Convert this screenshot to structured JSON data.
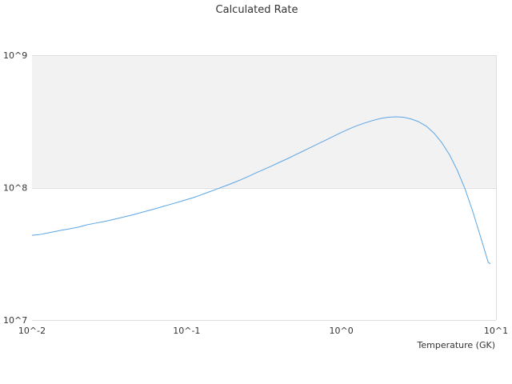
{
  "chart_data": {
    "type": "line",
    "title": "Calculated Rate",
    "xlabel": "Temperature (GK)",
    "ylabel": "",
    "x_scale": "log",
    "y_scale": "log",
    "xlim": [
      0.01,
      10
    ],
    "ylim": [
      10000000,
      1000000000
    ],
    "x_tick_labels": [
      "10^-2",
      "10^-1",
      "10^0",
      "10^1"
    ],
    "y_tick_labels": [
      "10^7",
      "10^8",
      "10^9"
    ],
    "grid": true,
    "legend": "none",
    "colors": {
      "line": "#5aa5e6",
      "band": "#f2f2f2",
      "grid": "#dddddd",
      "text": "#333333"
    },
    "series": [
      {
        "x": [
          0.01,
          0.0112,
          0.0126,
          0.0141,
          0.0158,
          0.0178,
          0.02,
          0.0224,
          0.0251,
          0.0282,
          0.0316,
          0.0355,
          0.0398,
          0.0447,
          0.0501,
          0.0562,
          0.0631,
          0.0708,
          0.0794,
          0.0891,
          0.1,
          0.1122,
          0.1259,
          0.1413,
          0.1585,
          0.1778,
          0.1995,
          0.2239,
          0.2512,
          0.2818,
          0.3162,
          0.3548,
          0.3981,
          0.4467,
          0.5012,
          0.5623,
          0.631,
          0.7079,
          0.7943,
          0.8913,
          1.0,
          1.122,
          1.259,
          1.413,
          1.585,
          1.778,
          1.995,
          2.239,
          2.512,
          2.818,
          3.162,
          3.548,
          3.981,
          4.467,
          5.012,
          5.623,
          6.31,
          7.079,
          7.943,
          8.913,
          9.2
        ],
        "y": [
          43600000,
          44200000,
          45400000,
          46600000,
          47800000,
          49000000,
          50300000,
          52200000,
          53600000,
          55000000,
          56500000,
          58300000,
          60300000,
          62200000,
          64500000,
          66900000,
          69400000,
          72200000,
          75000000,
          78000000,
          81200000,
          84500000,
          88800000,
          93300000,
          98000000,
          103000000,
          108500000,
          114600000,
          121600000,
          129400000,
          137400000,
          145800000,
          155300000,
          165000000,
          176200000,
          188000000,
          200700000,
          214300000,
          228600000,
          244300000,
          260900000,
          277400000,
          293100000,
          307300000,
          320400000,
          332000000,
          339600000,
          342800000,
          340000000,
          330400000,
          314500000,
          290800000,
          257300000,
          218000000,
          176500000,
          135000000,
          97500000,
          66000000,
          42500000,
          27200000,
          26600000
        ]
      }
    ]
  }
}
